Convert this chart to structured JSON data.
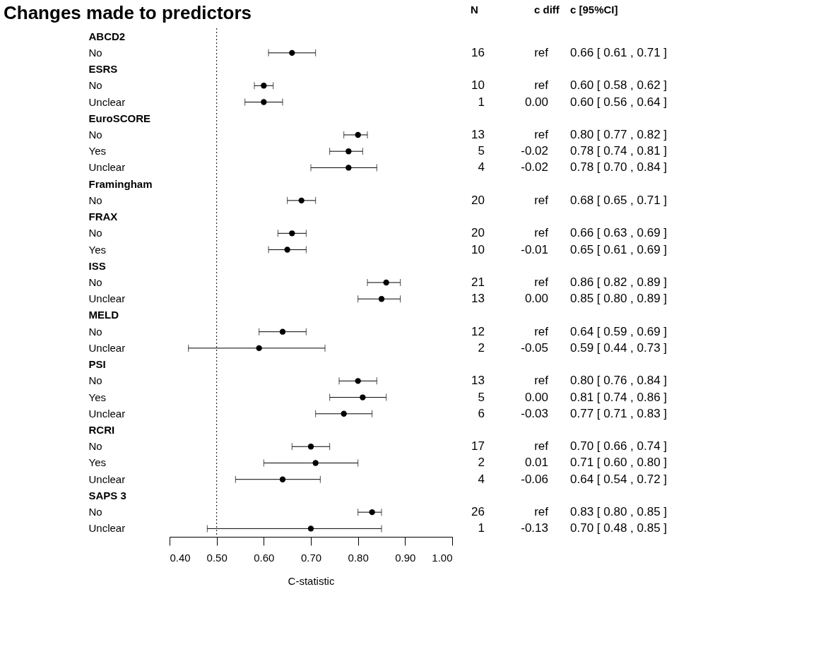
{
  "chart_data": [
    {
      "type": "scatter",
      "title": "Changes made to predictors",
      "orientation": "horizontal",
      "color": "#000000",
      "marker": "circle",
      "grid": false,
      "categories": [
        "ABCD2",
        "No",
        "ESRS",
        "No",
        "Unclear",
        "EuroSCORE",
        "No",
        "Yes",
        "Unclear",
        "Framingham",
        "No",
        "FRAX",
        "No",
        "Yes",
        "ISS",
        "No",
        "Unclear",
        "MELD",
        "No",
        "Unclear",
        "PSI",
        "No",
        "Yes",
        "Unclear",
        "RCRI",
        "No",
        "Yes",
        "Unclear",
        "SAPS 3",
        "No",
        "Unclear"
      ],
      "values": [
        null,
        0.66,
        null,
        0.6,
        0.6,
        null,
        0.8,
        0.78,
        0.78,
        null,
        0.68,
        null,
        0.66,
        0.65,
        null,
        0.86,
        0.85,
        null,
        0.64,
        0.59,
        null,
        0.8,
        0.81,
        0.77,
        null,
        0.7,
        0.71,
        0.64,
        null,
        0.83,
        0.7
      ],
      "errors": [
        null,
        [
          0.61,
          0.71
        ],
        null,
        [
          0.58,
          0.62
        ],
        [
          0.56,
          0.64
        ],
        null,
        [
          0.77,
          0.82
        ],
        [
          0.74,
          0.81
        ],
        [
          0.7,
          0.84
        ],
        null,
        [
          0.65,
          0.71
        ],
        null,
        [
          0.63,
          0.69
        ],
        [
          0.61,
          0.69
        ],
        null,
        [
          0.82,
          0.89
        ],
        [
          0.8,
          0.89
        ],
        null,
        [
          0.59,
          0.69
        ],
        [
          0.44,
          0.73
        ],
        null,
        [
          0.76,
          0.84
        ],
        [
          0.74,
          0.86
        ],
        [
          0.71,
          0.83
        ],
        null,
        [
          0.66,
          0.74
        ],
        [
          0.6,
          0.8
        ],
        [
          0.54,
          0.72
        ],
        null,
        [
          0.8,
          0.85
        ],
        [
          0.48,
          0.85
        ]
      ],
      "xlim": [
        0.4,
        1.0
      ],
      "xticks": [
        {
          "value": 0.4,
          "label": "0.40"
        },
        {
          "value": 0.5,
          "label": "0.50"
        },
        {
          "value": 0.6,
          "label": "0.60"
        },
        {
          "value": 0.7,
          "label": "0.70"
        },
        {
          "value": 0.8,
          "label": "0.80"
        },
        {
          "value": 0.9,
          "label": "0.90"
        },
        {
          "value": 1.0,
          "label": "1.00"
        }
      ],
      "xlabel": "C-statistic",
      "ref_lines": [
        {
          "axis": "x",
          "value": 0.5,
          "line_style": "dotted",
          "color": "#000000"
        }
      ]
    },
    {
      "type": "other",
      "title": "N",
      "annotations": [
        null,
        "16",
        null,
        "10",
        "1",
        null,
        "13",
        "5",
        "4",
        null,
        "20",
        null,
        "20",
        "10",
        null,
        "21",
        "13",
        null,
        "12",
        "2",
        null,
        "13",
        "5",
        "6",
        null,
        "17",
        "2",
        "4",
        null,
        "26",
        "1"
      ]
    },
    {
      "type": "other",
      "title": "c diff",
      "annotations": [
        null,
        "ref",
        null,
        "ref",
        "0.00",
        null,
        "ref",
        "-0.02",
        "-0.02",
        null,
        "ref",
        null,
        "ref",
        "-0.01",
        null,
        "ref",
        "0.00",
        null,
        "ref",
        "-0.05",
        null,
        "ref",
        "0.00",
        "-0.03",
        null,
        "ref",
        "0.01",
        "-0.06",
        null,
        "ref",
        "-0.13"
      ]
    },
    {
      "type": "other",
      "title": "c [95%CI]",
      "annotations": [
        null,
        "0.66 [ 0.61 , 0.71 ]",
        null,
        "0.60 [ 0.58 , 0.62 ]",
        "0.60 [ 0.56 , 0.64 ]",
        null,
        "0.80 [ 0.77 , 0.82 ]",
        "0.78 [ 0.74 , 0.81 ]",
        "0.78 [ 0.70 , 0.84 ]",
        null,
        "0.68 [ 0.65 , 0.71 ]",
        null,
        "0.66 [ 0.63 , 0.69 ]",
        "0.65 [ 0.61 , 0.69 ]",
        null,
        "0.86 [ 0.82 , 0.89 ]",
        "0.85 [ 0.80 , 0.89 ]",
        null,
        "0.64 [ 0.59 , 0.69 ]",
        "0.59 [ 0.44 , 0.73 ]",
        null,
        "0.80 [ 0.76 , 0.84 ]",
        "0.81 [ 0.74 , 0.86 ]",
        "0.77 [ 0.71 , 0.83 ]",
        null,
        "0.70 [ 0.66 , 0.74 ]",
        "0.71 [ 0.60 , 0.80 ]",
        "0.64 [ 0.54 , 0.72 ]",
        null,
        "0.83 [ 0.80 , 0.85 ]",
        "0.70 [ 0.48 , 0.85 ]"
      ]
    }
  ]
}
